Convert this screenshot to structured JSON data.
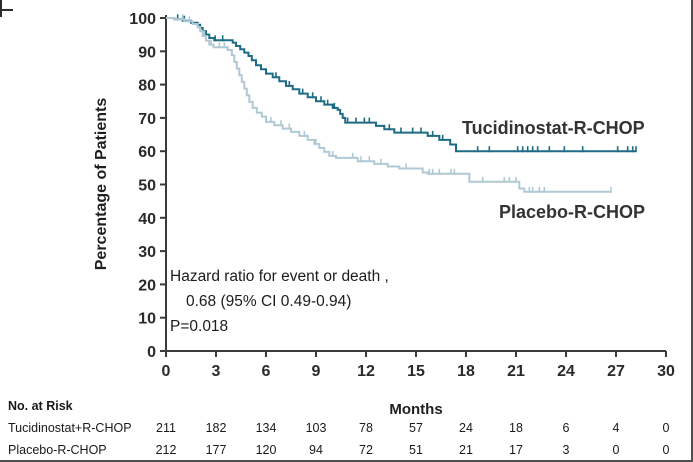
{
  "figure": {
    "background": "#ffffff",
    "border_color": "#4f4f4f",
    "axis_color": "#3a3a3a"
  },
  "chart_data": {
    "type": "line",
    "subtype": "kaplan-meier-step-survival",
    "title": "",
    "xlabel": "Months",
    "ylabel": "Percentage of Patients",
    "xlim": [
      0,
      30
    ],
    "ylim": [
      0,
      100
    ],
    "xticks": [
      0,
      3,
      6,
      9,
      12,
      15,
      18,
      21,
      24,
      27,
      30
    ],
    "yticks": [
      0,
      10,
      20,
      30,
      40,
      50,
      60,
      70,
      80,
      90,
      100
    ],
    "grid": false,
    "legend_position": "labels-next-to-curves",
    "annotation": {
      "line1": "Hazard ratio for event or death ,",
      "line2": "0.68 (95% CI 0.49-0.94)",
      "line3": "P=0.018"
    },
    "series": [
      {
        "name": "Tucidinostat-R-CHOP",
        "color": "#1e6b85",
        "end_month": 28.2,
        "steps": [
          [
            0,
            100
          ],
          [
            0.5,
            99.6
          ],
          [
            1.0,
            99.2
          ],
          [
            1.5,
            98.6
          ],
          [
            1.9,
            98
          ],
          [
            2.05,
            97
          ],
          [
            2.2,
            96
          ],
          [
            2.4,
            95
          ],
          [
            2.6,
            94
          ],
          [
            2.9,
            93.3
          ],
          [
            4.0,
            92.6
          ],
          [
            4.2,
            91.6
          ],
          [
            4.45,
            90.6
          ],
          [
            4.7,
            89.6
          ],
          [
            4.95,
            88.6
          ],
          [
            5.15,
            87.3
          ],
          [
            5.4,
            85.8
          ],
          [
            5.7,
            84.6
          ],
          [
            6.0,
            83.3
          ],
          [
            6.4,
            82.2
          ],
          [
            6.8,
            81
          ],
          [
            7.2,
            79.6
          ],
          [
            7.6,
            78.6
          ],
          [
            8.0,
            77.3
          ],
          [
            8.5,
            76.2
          ],
          [
            9.0,
            75
          ],
          [
            9.5,
            74
          ],
          [
            10.0,
            73
          ],
          [
            10.3,
            72.4
          ],
          [
            10.45,
            71.2
          ],
          [
            10.6,
            70
          ],
          [
            10.75,
            68.6
          ],
          [
            12.6,
            67.6
          ],
          [
            13.1,
            66.6
          ],
          [
            13.7,
            65.6
          ],
          [
            15.7,
            64.6
          ],
          [
            16.4,
            63.4
          ],
          [
            17.05,
            62
          ],
          [
            17.4,
            60
          ]
        ],
        "censor_months": [
          0.7,
          1.1,
          2.95,
          3.4,
          6.6,
          7.4,
          8.2,
          8.8,
          9.3,
          9.7,
          10.1,
          10.9,
          11.4,
          11.9,
          12.2,
          13.4,
          14.1,
          14.8,
          15.3,
          16.0,
          16.6,
          18.7,
          19.4,
          21.1,
          21.4,
          21.7,
          22.0,
          22.3,
          23.0,
          23.9,
          25.0,
          27.1,
          27.7,
          28.0,
          28.2
        ]
      },
      {
        "name": "Placebo-R-CHOP",
        "color": "#b0c9d5",
        "end_month": 26.7,
        "steps": [
          [
            0,
            100
          ],
          [
            0.5,
            99.6
          ],
          [
            1.1,
            99
          ],
          [
            1.6,
            98.2
          ],
          [
            1.9,
            97.2
          ],
          [
            2.05,
            96
          ],
          [
            2.2,
            94.6
          ],
          [
            2.4,
            93.2
          ],
          [
            2.6,
            92
          ],
          [
            2.85,
            91.2
          ],
          [
            3.7,
            90.4
          ],
          [
            3.95,
            88.8
          ],
          [
            4.1,
            86.8
          ],
          [
            4.25,
            84.8
          ],
          [
            4.4,
            82.8
          ],
          [
            4.55,
            80.8
          ],
          [
            4.7,
            78.8
          ],
          [
            4.85,
            76.8
          ],
          [
            5.0,
            74.8
          ],
          [
            5.2,
            73
          ],
          [
            5.45,
            71.6
          ],
          [
            5.75,
            70.4
          ],
          [
            6.0,
            68.8
          ],
          [
            6.5,
            67.8
          ],
          [
            7.0,
            66.8
          ],
          [
            7.5,
            65.8
          ],
          [
            8.0,
            64.6
          ],
          [
            8.5,
            63.4
          ],
          [
            8.9,
            62.2
          ],
          [
            9.2,
            61
          ],
          [
            9.5,
            59.8
          ],
          [
            9.8,
            58.6
          ],
          [
            10.2,
            58
          ],
          [
            11.5,
            57
          ],
          [
            12.5,
            56.2
          ],
          [
            13.3,
            55.4
          ],
          [
            14.0,
            54.8
          ],
          [
            15.4,
            53.6
          ],
          [
            15.7,
            53.2
          ],
          [
            18.2,
            50.8
          ],
          [
            21.2,
            48.8
          ],
          [
            21.5,
            47.8
          ]
        ],
        "censor_months": [
          1.0,
          1.4,
          2.3,
          2.7,
          3.2,
          3.5,
          6.3,
          6.9,
          7.4,
          8.3,
          9.0,
          10.0,
          11.2,
          11.7,
          12.2,
          12.9,
          14.4,
          15.8,
          16.0,
          16.4,
          17.1,
          17.3,
          19.0,
          20.3,
          20.6,
          21.0,
          21.8,
          22.0,
          22.4,
          22.7,
          26.7
        ]
      }
    ]
  },
  "risk_table": {
    "header": "No. at Risk",
    "months": [
      0,
      3,
      6,
      9,
      12,
      15,
      18,
      21,
      24,
      27,
      30
    ],
    "rows": [
      {
        "label": "Tucidinostat+R-CHOP",
        "values": [
          "211",
          "182",
          "134",
          "103",
          "78",
          "57",
          "24",
          "18",
          "6",
          "4",
          "0"
        ]
      },
      {
        "label": "Placebo-R-CHOP",
        "values": [
          "212",
          "177",
          "120",
          "94",
          "72",
          "51",
          "21",
          "17",
          "3",
          "0",
          "0"
        ]
      }
    ]
  }
}
